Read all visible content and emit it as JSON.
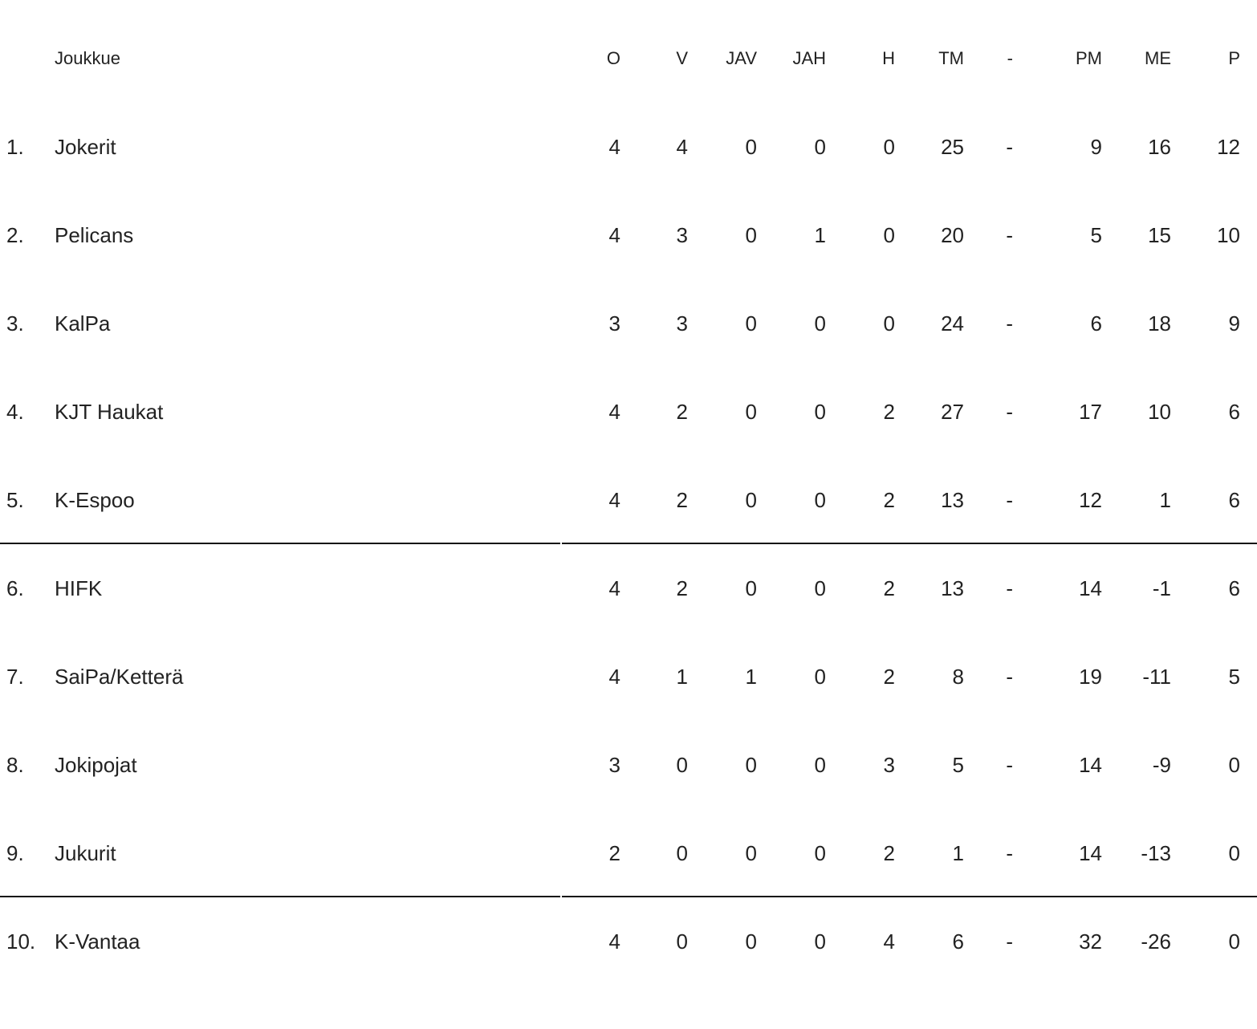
{
  "headers": {
    "rank": "",
    "team": "Joukkue",
    "o": "O",
    "v": "V",
    "jav": "JAV",
    "jah": "JAH",
    "h": "H",
    "tm": "TM",
    "dash": "-",
    "pm": "PM",
    "me": "ME",
    "p": "P"
  },
  "rows": [
    {
      "rank": "1.",
      "team": "Jokerit",
      "o": "4",
      "v": "4",
      "jav": "0",
      "jah": "0",
      "h": "0",
      "tm": "25",
      "dash": "-",
      "pm": "9",
      "me": "16",
      "p": "12"
    },
    {
      "rank": "2.",
      "team": "Pelicans",
      "o": "4",
      "v": "3",
      "jav": "0",
      "jah": "1",
      "h": "0",
      "tm": "20",
      "dash": "-",
      "pm": "5",
      "me": "15",
      "p": "10"
    },
    {
      "rank": "3.",
      "team": "KalPa",
      "o": "3",
      "v": "3",
      "jav": "0",
      "jah": "0",
      "h": "0",
      "tm": "24",
      "dash": "-",
      "pm": "6",
      "me": "18",
      "p": "9"
    },
    {
      "rank": "4.",
      "team": "KJT Haukat",
      "o": "4",
      "v": "2",
      "jav": "0",
      "jah": "0",
      "h": "2",
      "tm": "27",
      "dash": "-",
      "pm": "17",
      "me": "10",
      "p": "6"
    },
    {
      "rank": "5.",
      "team": "K-Espoo",
      "o": "4",
      "v": "2",
      "jav": "0",
      "jah": "0",
      "h": "2",
      "tm": "13",
      "dash": "-",
      "pm": "12",
      "me": "1",
      "p": "6"
    },
    {
      "rank": "6.",
      "team": "HIFK",
      "o": "4",
      "v": "2",
      "jav": "0",
      "jah": "0",
      "h": "2",
      "tm": "13",
      "dash": "-",
      "pm": "14",
      "me": "-1",
      "p": "6"
    },
    {
      "rank": "7.",
      "team": "SaiPa/Ketterä",
      "o": "4",
      "v": "1",
      "jav": "1",
      "jah": "0",
      "h": "2",
      "tm": "8",
      "dash": "-",
      "pm": "19",
      "me": "-11",
      "p": "5"
    },
    {
      "rank": "8.",
      "team": "Jokipojat",
      "o": "3",
      "v": "0",
      "jav": "0",
      "jah": "0",
      "h": "3",
      "tm": "5",
      "dash": "-",
      "pm": "14",
      "me": "-9",
      "p": "0"
    },
    {
      "rank": "9.",
      "team": "Jukurit",
      "o": "2",
      "v": "0",
      "jav": "0",
      "jah": "0",
      "h": "2",
      "tm": "1",
      "dash": "-",
      "pm": "14",
      "me": "-13",
      "p": "0"
    },
    {
      "rank": "10.",
      "team": "K-Vantaa",
      "o": "4",
      "v": "0",
      "jav": "0",
      "jah": "0",
      "h": "4",
      "tm": "6",
      "dash": "-",
      "pm": "32",
      "me": "-26",
      "p": "0"
    }
  ],
  "separators_after_rank": [
    5,
    9
  ]
}
